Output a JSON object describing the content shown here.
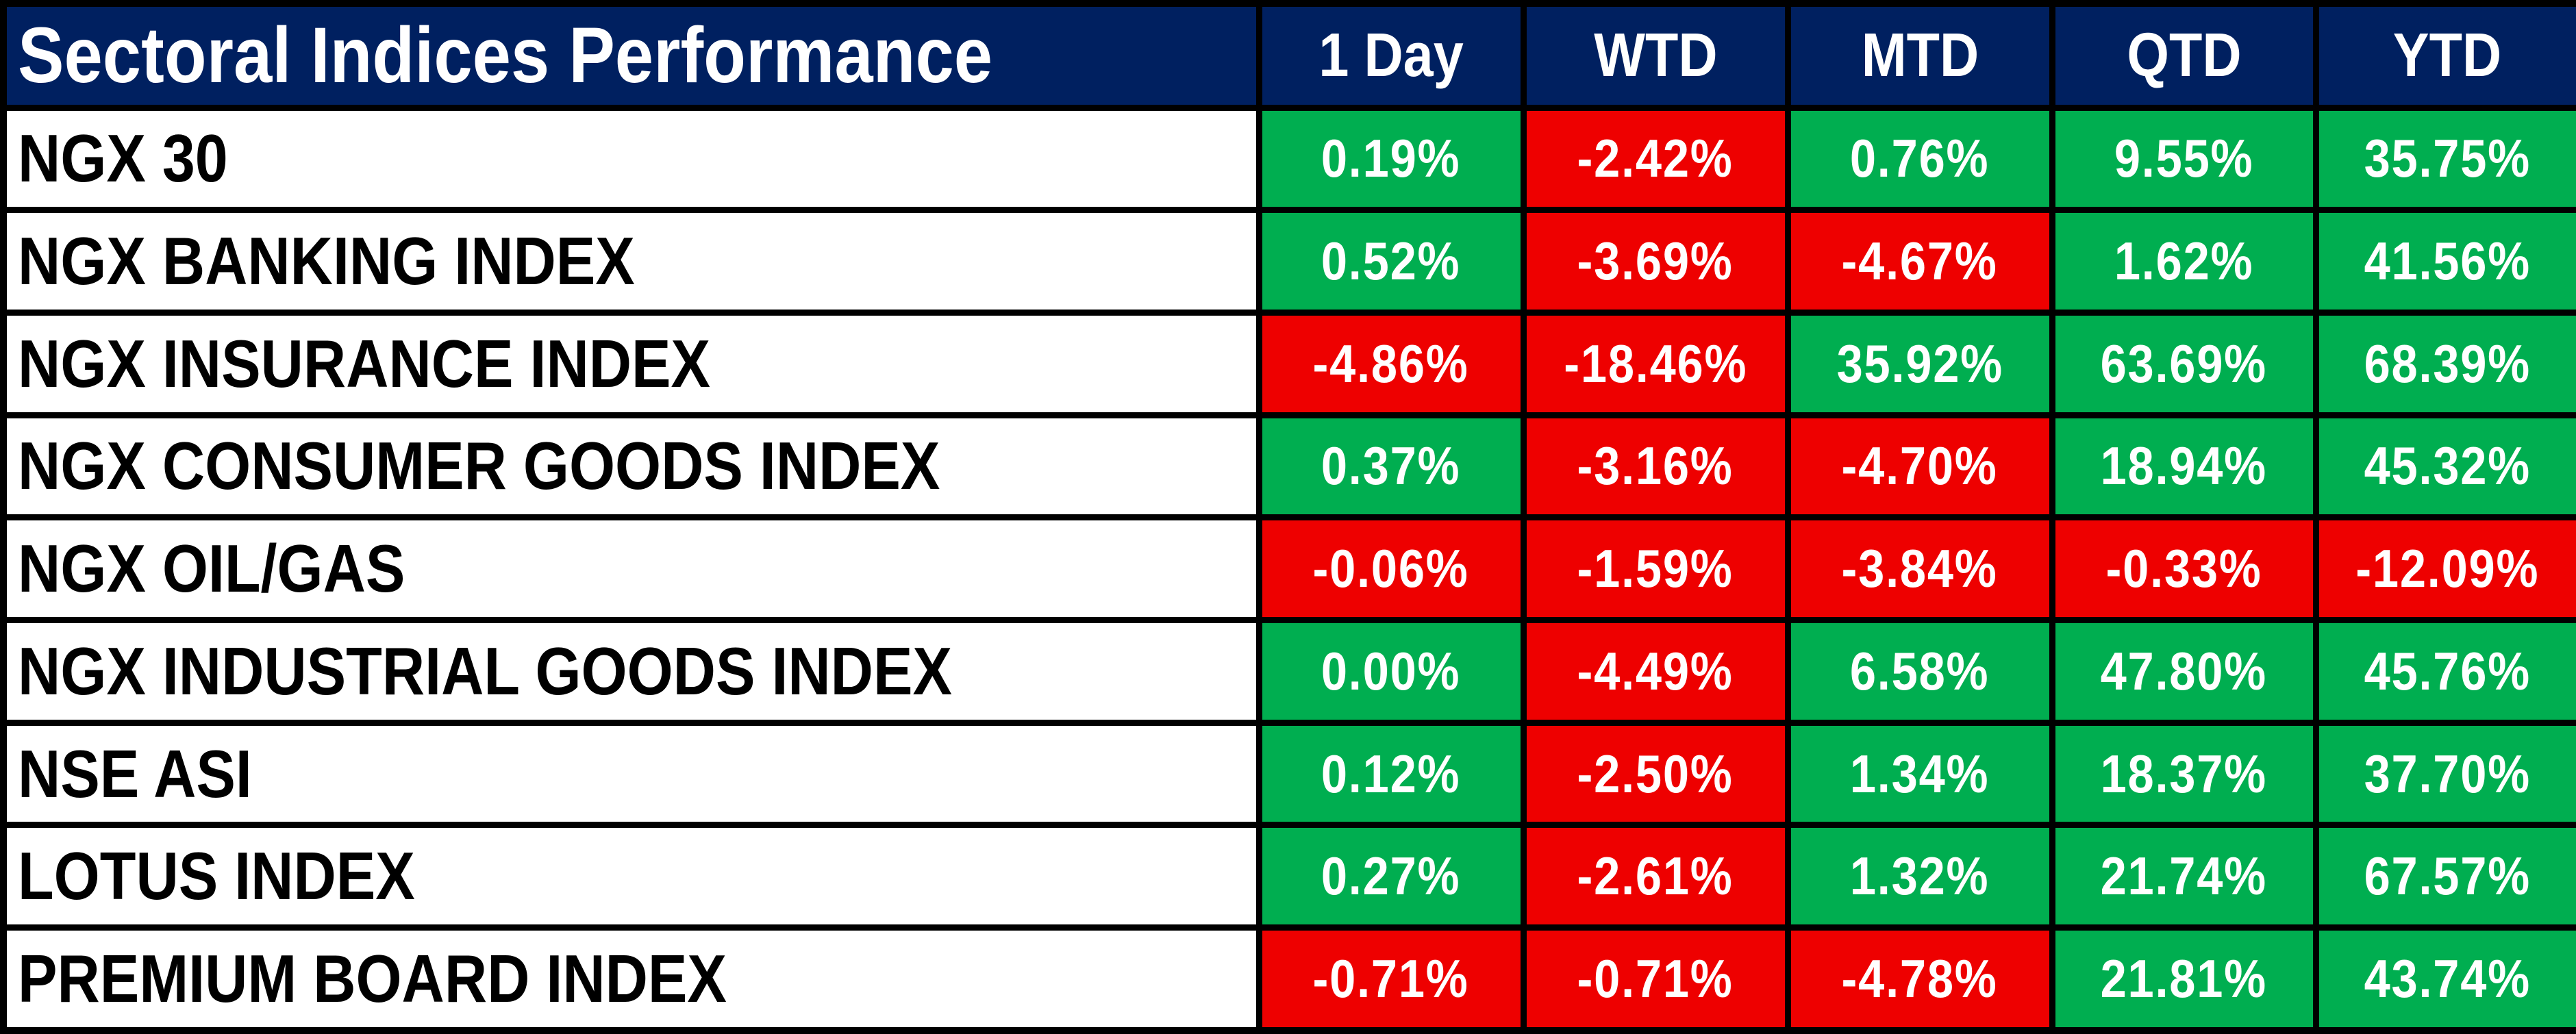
{
  "table": {
    "title": "Sectoral Indices Performance",
    "columns": [
      "1 Day",
      "WTD",
      "MTD",
      "QTD",
      "YTD"
    ],
    "rows": [
      {
        "label": "NGX 30",
        "values": [
          "0.19%",
          "-2.42%",
          "0.76%",
          "9.55%",
          "35.75%"
        ]
      },
      {
        "label": "NGX BANKING INDEX",
        "values": [
          "0.52%",
          "-3.69%",
          "-4.67%",
          "1.62%",
          "41.56%"
        ]
      },
      {
        "label": "NGX INSURANCE INDEX",
        "values": [
          "-4.86%",
          "-18.46%",
          "35.92%",
          "63.69%",
          "68.39%"
        ]
      },
      {
        "label": "NGX CONSUMER GOODS INDEX",
        "values": [
          "0.37%",
          "-3.16%",
          "-4.70%",
          "18.94%",
          "45.32%"
        ]
      },
      {
        "label": "NGX OIL/GAS",
        "values": [
          "-0.06%",
          "-1.59%",
          "-3.84%",
          "-0.33%",
          "-12.09%"
        ]
      },
      {
        "label": "NGX INDUSTRIAL GOODS INDEX",
        "values": [
          "0.00%",
          "-4.49%",
          "6.58%",
          "47.80%",
          "45.76%"
        ]
      },
      {
        "label": "NSE ASI",
        "values": [
          "0.12%",
          "-2.50%",
          "1.34%",
          "18.37%",
          "37.70%"
        ]
      },
      {
        "label": "LOTUS INDEX",
        "values": [
          "0.27%",
          "-2.61%",
          "1.32%",
          "21.74%",
          "67.57%"
        ]
      },
      {
        "label": "PREMIUM BOARD INDEX",
        "values": [
          "-0.71%",
          "-0.71%",
          "-4.78%",
          "21.81%",
          "43.74%"
        ]
      }
    ]
  },
  "colors": {
    "header_bg": "#002060",
    "positive_bg": "#00AE50",
    "negative_bg": "#EE0000",
    "grid": "#000000",
    "header_text": "#FFFFFF",
    "value_text": "#FFFFFF",
    "label_text": "#000000",
    "label_bg": "#FFFFFF"
  },
  "chart_data": {
    "type": "table",
    "title": "Sectoral Indices Performance",
    "units": "percent",
    "categories": [
      "NGX 30",
      "NGX BANKING INDEX",
      "NGX INSURANCE INDEX",
      "NGX CONSUMER GOODS INDEX",
      "NGX OIL/GAS",
      "NGX INDUSTRIAL GOODS INDEX",
      "NSE ASI",
      "LOTUS INDEX",
      "PREMIUM BOARD INDEX"
    ],
    "series": [
      {
        "name": "1 Day",
        "values": [
          0.19,
          0.52,
          -4.86,
          0.37,
          -0.06,
          0.0,
          0.12,
          0.27,
          -0.71
        ]
      },
      {
        "name": "WTD",
        "values": [
          -2.42,
          -3.69,
          -18.46,
          -3.16,
          -1.59,
          -4.49,
          -2.5,
          -2.61,
          -0.71
        ]
      },
      {
        "name": "MTD",
        "values": [
          0.76,
          -4.67,
          35.92,
          -4.7,
          -3.84,
          6.58,
          1.34,
          1.32,
          -4.78
        ]
      },
      {
        "name": "QTD",
        "values": [
          9.55,
          1.62,
          63.69,
          18.94,
          -0.33,
          47.8,
          18.37,
          21.74,
          21.81
        ]
      },
      {
        "name": "YTD",
        "values": [
          35.75,
          41.56,
          68.39,
          45.32,
          -12.09,
          45.76,
          37.7,
          67.57,
          43.74
        ]
      }
    ],
    "color_rule": "negative values on red #EE0000, non-negative on green #00AE50, white bold text"
  }
}
